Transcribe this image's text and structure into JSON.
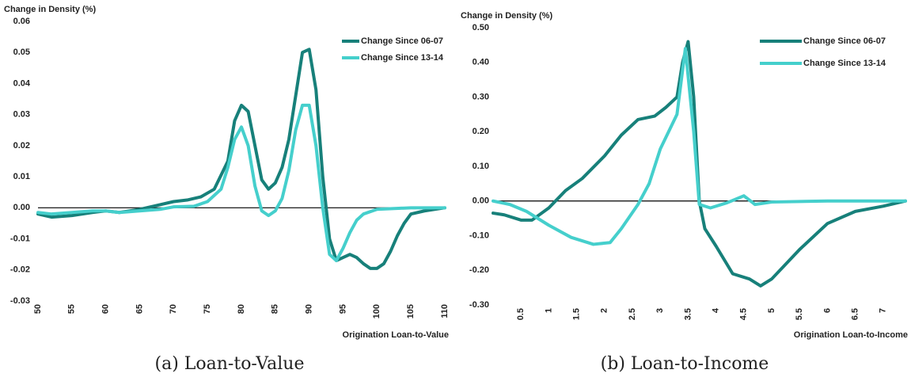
{
  "chart_data": [
    {
      "type": "line",
      "y_label": "Change in Density (%)",
      "x_label": "Origination Loan-to-Value",
      "caption": "(a) Loan-to-Value",
      "xlim": [
        50,
        110
      ],
      "xticks": [
        50,
        55,
        60,
        65,
        70,
        75,
        80,
        85,
        90,
        95,
        100,
        105,
        110
      ],
      "ylim": [
        -0.03,
        0.06
      ],
      "yticks": [
        -0.03,
        -0.02,
        -0.01,
        {
          "value": 0,
          "label": "0.00"
        },
        0.01,
        0.02,
        0.03,
        0.04,
        0.05,
        0.06
      ],
      "series": [
        {
          "name": "Change Since 06-07",
          "color": "#17807a",
          "x": [
            50,
            52,
            55,
            58,
            60,
            62,
            65,
            68,
            70,
            72,
            74,
            76,
            78,
            79,
            80,
            81,
            82,
            83,
            84,
            85,
            86,
            87,
            88,
            89,
            90,
            91,
            92,
            93,
            94,
            95,
            96,
            97,
            98,
            99,
            100,
            101,
            102,
            103,
            104,
            105,
            107,
            110
          ],
          "values": [
            -0.002,
            -0.003,
            -0.0025,
            -0.0015,
            -0.001,
            -0.0015,
            -0.0005,
            0.001,
            0.002,
            0.0025,
            0.0035,
            0.006,
            0.015,
            0.028,
            0.033,
            0.031,
            0.02,
            0.009,
            0.006,
            0.008,
            0.013,
            0.022,
            0.036,
            0.05,
            0.051,
            0.038,
            0.01,
            -0.01,
            -0.017,
            -0.016,
            -0.015,
            -0.016,
            -0.018,
            -0.0195,
            -0.0195,
            -0.018,
            -0.014,
            -0.009,
            -0.005,
            -0.002,
            -0.001,
            0
          ]
        },
        {
          "name": "Change Since 13-14",
          "color": "#45cfcc",
          "x": [
            50,
            52,
            55,
            58,
            60,
            62,
            65,
            68,
            70,
            73,
            75,
            77,
            78,
            79,
            80,
            81,
            82,
            83,
            84,
            85,
            86,
            87,
            88,
            89,
            90,
            91,
            92,
            93,
            94,
            95,
            96,
            97,
            98,
            100,
            105,
            110
          ],
          "values": [
            -0.0015,
            -0.002,
            -0.0015,
            -0.001,
            -0.001,
            -0.0015,
            -0.001,
            -0.0005,
            0.0003,
            0.0005,
            0.002,
            0.006,
            0.013,
            0.022,
            0.026,
            0.02,
            0.007,
            -0.001,
            -0.0025,
            -0.001,
            0.003,
            0.012,
            0.025,
            0.033,
            0.033,
            0.02,
            0,
            -0.015,
            -0.017,
            -0.013,
            -0.008,
            -0.004,
            -0.002,
            -0.0005,
            0,
            0
          ]
        }
      ]
    },
    {
      "type": "line",
      "y_label": "Change in Density (%)",
      "x_label": "Origination Loan-to-Income",
      "caption": "(b) Loan-to-Income",
      "xlim": [
        0,
        7.4
      ],
      "xticks": [
        0.5,
        1,
        1.5,
        2,
        2.5,
        3,
        3.5,
        4,
        4.5,
        5,
        5.5,
        6,
        6.5,
        7
      ],
      "ylim": [
        -0.3,
        0.5
      ],
      "yticks": [
        {
          "value": -0.3,
          "label": "-0.30"
        },
        {
          "value": -0.2,
          "label": "-0.20"
        },
        {
          "value": -0.1,
          "label": "-0.10"
        },
        {
          "value": 0,
          "label": "0.00"
        },
        {
          "value": 0.1,
          "label": "0.10"
        },
        {
          "value": 0.2,
          "label": "0.20"
        },
        {
          "value": 0.3,
          "label": "0.30"
        },
        {
          "value": 0.4,
          "label": "0.40"
        },
        {
          "value": 0.5,
          "label": "0.50"
        }
      ],
      "series": [
        {
          "name": "Change Since 06-07",
          "color": "#17807a",
          "x": [
            0,
            0.2,
            0.5,
            0.7,
            1.0,
            1.3,
            1.6,
            2.0,
            2.3,
            2.6,
            2.9,
            3.1,
            3.3,
            3.4,
            3.5,
            3.6,
            3.7,
            3.8,
            4.0,
            4.3,
            4.6,
            4.8,
            5.0,
            5.5,
            6.0,
            6.5,
            7.0,
            7.4
          ],
          "values": [
            -0.035,
            -0.04,
            -0.055,
            -0.055,
            -0.02,
            0.03,
            0.065,
            0.13,
            0.19,
            0.235,
            0.245,
            0.27,
            0.3,
            0.4,
            0.46,
            0.3,
            0,
            -0.08,
            -0.13,
            -0.21,
            -0.225,
            -0.245,
            -0.225,
            -0.14,
            -0.065,
            -0.03,
            -0.015,
            0
          ]
        },
        {
          "name": "Change Since 13-14",
          "color": "#45cfcc",
          "x": [
            0,
            0.3,
            0.6,
            1.0,
            1.4,
            1.8,
            2.1,
            2.3,
            2.6,
            2.8,
            3.0,
            3.3,
            3.45,
            3.6,
            3.7,
            3.9,
            4.2,
            4.5,
            4.7,
            5.0,
            6.0,
            7.4
          ],
          "values": [
            0,
            -0.01,
            -0.03,
            -0.07,
            -0.105,
            -0.125,
            -0.12,
            -0.08,
            -0.01,
            0.05,
            0.15,
            0.25,
            0.44,
            0.2,
            -0.01,
            -0.02,
            -0.005,
            0.015,
            -0.01,
            -0.003,
            0,
            0
          ]
        }
      ]
    }
  ]
}
